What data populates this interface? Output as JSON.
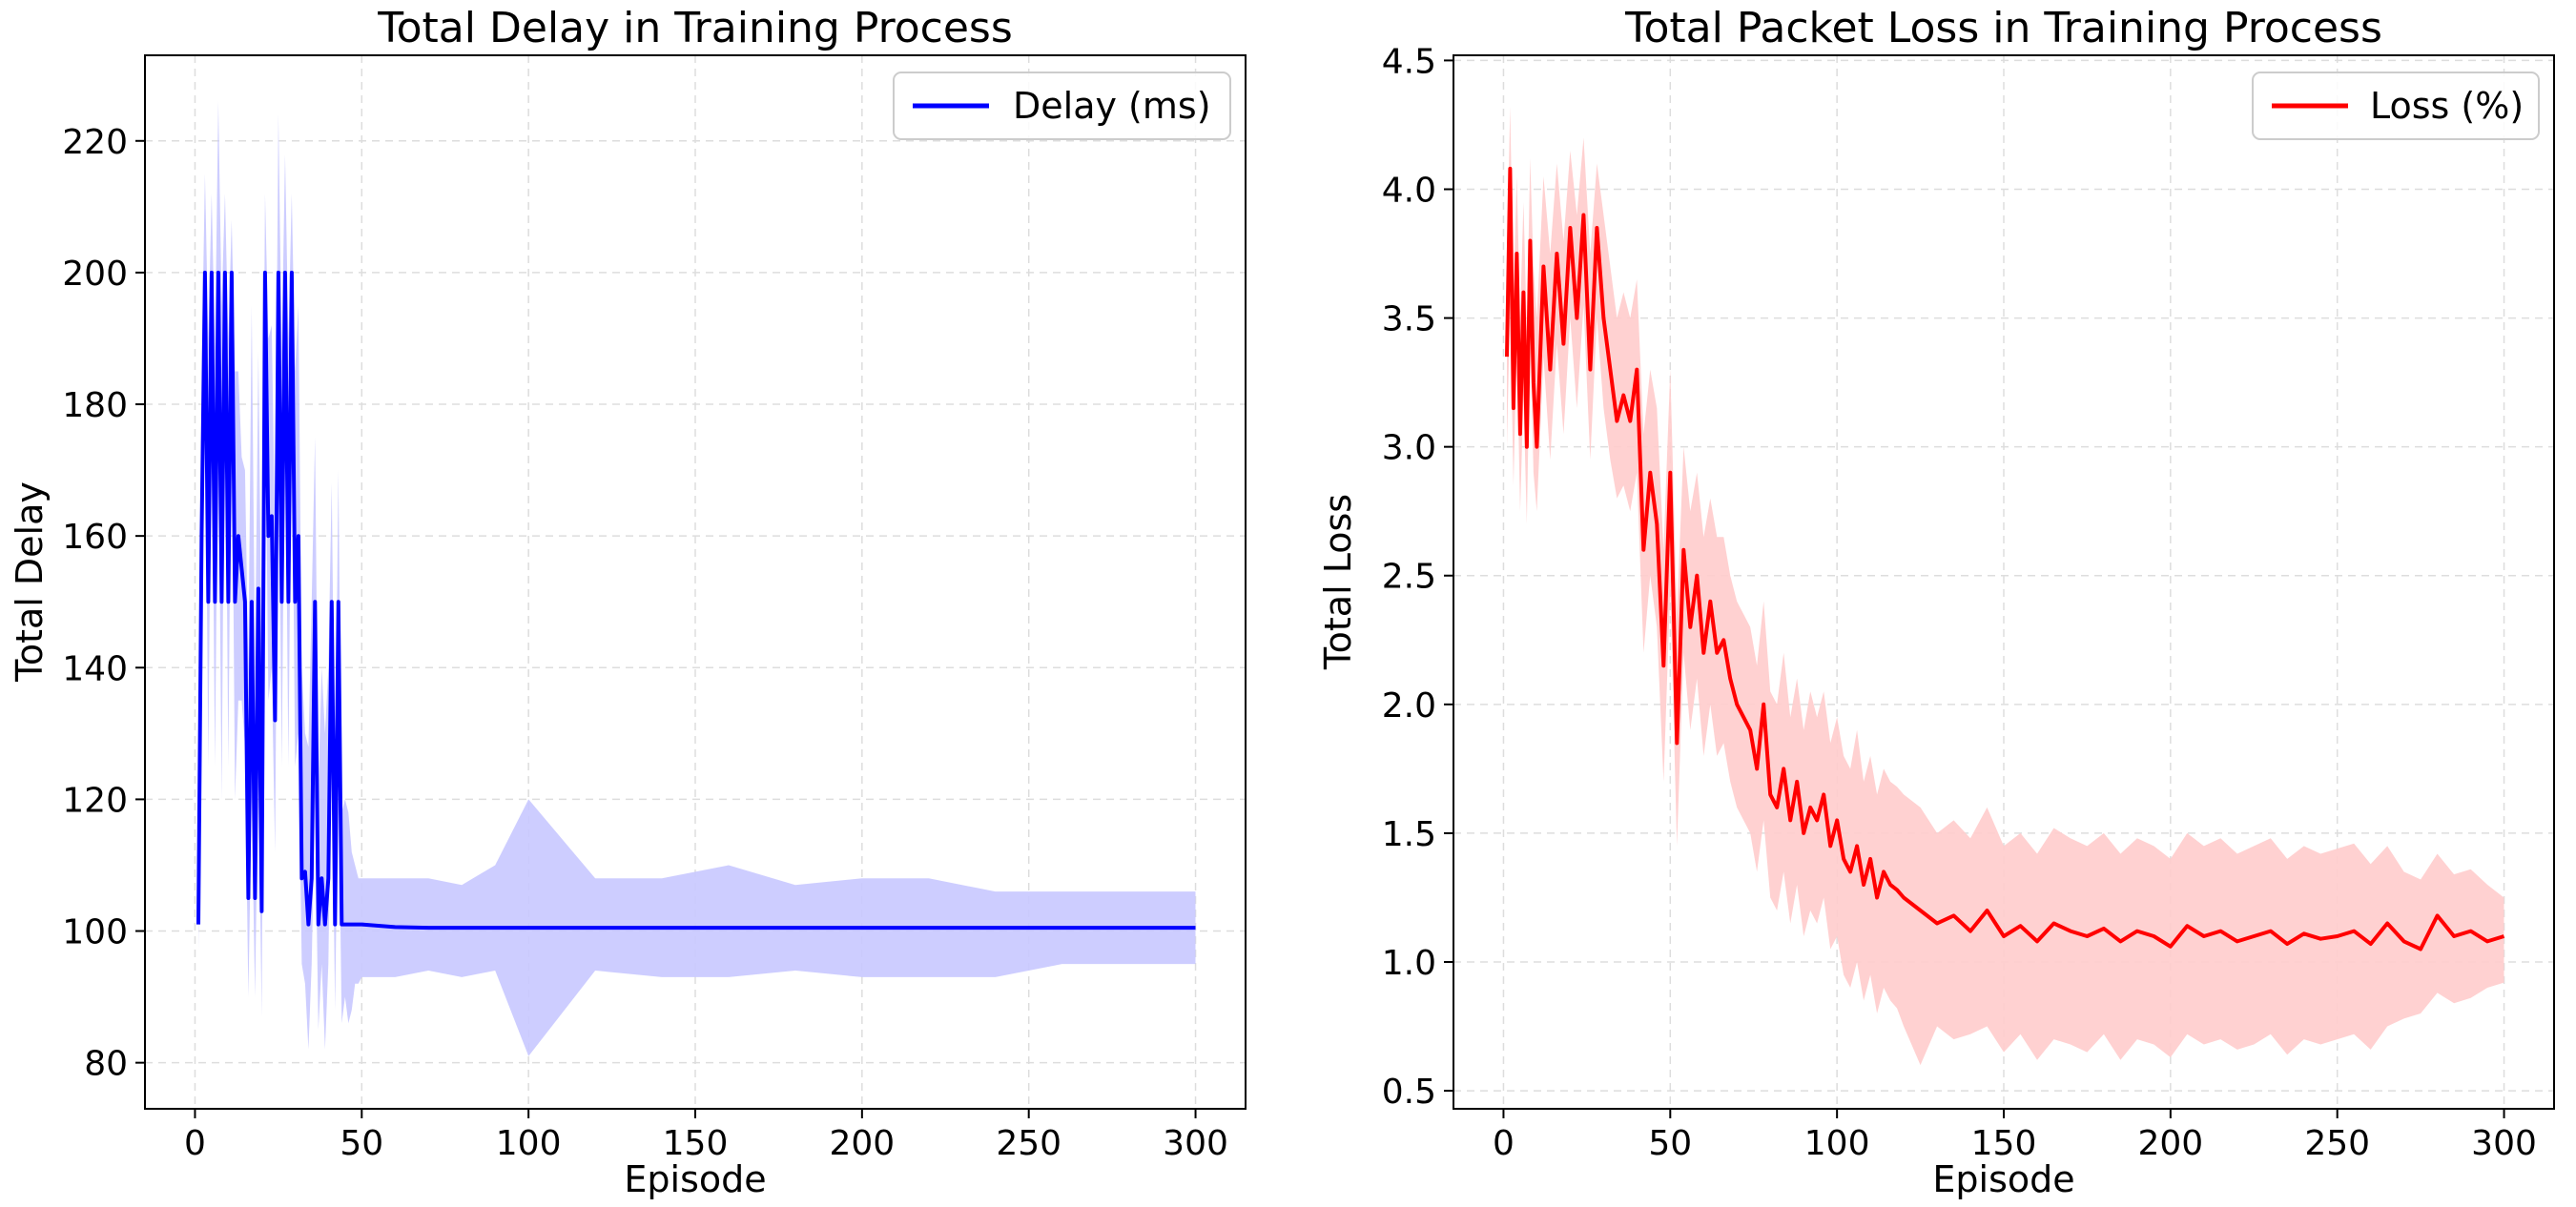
{
  "chart_data": [
    {
      "type": "line",
      "title": "Total Delay in Training Process",
      "xlabel": "Episode",
      "ylabel": "Total Delay",
      "xlim": [
        -15,
        315
      ],
      "ylim": [
        73,
        233
      ],
      "xticks": [
        0,
        50,
        100,
        150,
        200,
        250,
        300
      ],
      "yticks": [
        80,
        100,
        120,
        140,
        160,
        180,
        200,
        220
      ],
      "grid": true,
      "legend": {
        "position": "top-right",
        "entries": [
          "Delay (ms)"
        ]
      },
      "line_color": "#0000ff",
      "band_color": "#c8c8ff",
      "series": [
        {
          "name": "Delay (ms)",
          "x": [
            1,
            2,
            3,
            4,
            5,
            6,
            7,
            8,
            9,
            10,
            11,
            12,
            13,
            14,
            15,
            16,
            17,
            18,
            19,
            20,
            21,
            22,
            23,
            24,
            25,
            26,
            27,
            28,
            29,
            30,
            31,
            32,
            33,
            34,
            35,
            36,
            37,
            38,
            39,
            40,
            41,
            42,
            43,
            44,
            45,
            46,
            47,
            48,
            49,
            50,
            60,
            70,
            80,
            90,
            100,
            120,
            140,
            160,
            180,
            200,
            220,
            240,
            260,
            280,
            300
          ],
          "values": [
            101,
            160,
            200,
            150,
            200,
            150,
            200,
            150,
            200,
            150,
            200,
            150,
            160,
            155,
            150,
            105,
            150,
            105,
            152,
            103,
            200,
            160,
            163,
            132,
            200,
            150,
            200,
            150,
            200,
            150,
            160,
            108,
            109,
            101,
            108,
            150,
            101,
            108,
            101,
            108,
            150,
            101,
            150,
            101,
            101,
            101,
            101,
            101,
            101,
            101,
            100.6,
            100.5,
            100.5,
            100.5,
            100.5,
            100.5,
            100.5,
            100.5,
            100.5,
            100.5,
            100.5,
            100.5,
            100.5,
            100.5,
            100.5
          ],
          "upper": [
            110,
            185,
            215,
            190,
            212,
            188,
            226,
            195,
            212,
            190,
            208,
            185,
            185,
            172,
            170,
            140,
            195,
            140,
            188,
            140,
            212,
            190,
            192,
            160,
            224,
            188,
            218,
            190,
            212,
            185,
            195,
            140,
            130,
            128,
            150,
            175,
            122,
            140,
            130,
            140,
            168,
            120,
            170,
            118,
            120,
            118,
            112,
            110,
            108,
            108,
            108,
            108,
            107,
            110,
            120,
            108,
            108,
            110,
            107,
            108,
            108,
            106,
            106,
            106,
            106
          ],
          "lower": [
            97,
            140,
            190,
            125,
            185,
            125,
            180,
            120,
            190,
            125,
            185,
            120,
            135,
            135,
            128,
            90,
            120,
            90,
            125,
            87,
            185,
            135,
            140,
            112,
            182,
            125,
            182,
            125,
            182,
            125,
            130,
            95,
            92,
            82,
            95,
            120,
            85,
            95,
            82,
            95,
            130,
            88,
            125,
            86,
            90,
            86,
            88,
            92,
            92,
            93,
            93,
            94,
            93,
            94,
            81,
            94,
            93,
            93,
            94,
            93,
            93,
            93,
            95,
            95,
            95
          ]
        }
      ]
    },
    {
      "type": "line",
      "title": "Total Packet Loss in Training Process",
      "xlabel": "Episode",
      "ylabel": "Total Loss",
      "xlim": [
        -15,
        315
      ],
      "ylim": [
        0.43,
        4.52
      ],
      "xticks": [
        0,
        50,
        100,
        150,
        200,
        250,
        300
      ],
      "yticks": [
        0.5,
        1.0,
        1.5,
        2.0,
        2.5,
        3.0,
        3.5,
        4.0,
        4.5
      ],
      "grid": true,
      "legend": {
        "position": "top-right",
        "entries": [
          "Loss (%)"
        ]
      },
      "line_color": "#ff0000",
      "band_color": "#ffcccc",
      "series": [
        {
          "name": "Loss (%)",
          "x": [
            1,
            2,
            3,
            4,
            5,
            6,
            7,
            8,
            9,
            10,
            12,
            14,
            16,
            18,
            20,
            22,
            24,
            26,
            28,
            30,
            32,
            34,
            36,
            38,
            40,
            42,
            44,
            46,
            48,
            50,
            52,
            54,
            56,
            58,
            60,
            62,
            64,
            66,
            68,
            70,
            72,
            74,
            76,
            78,
            80,
            82,
            84,
            86,
            88,
            90,
            92,
            94,
            96,
            98,
            100,
            102,
            104,
            106,
            108,
            110,
            112,
            114,
            116,
            118,
            120,
            125,
            130,
            135,
            140,
            145,
            150,
            155,
            160,
            165,
            170,
            175,
            180,
            185,
            190,
            195,
            200,
            205,
            210,
            215,
            220,
            225,
            230,
            235,
            240,
            245,
            250,
            255,
            260,
            265,
            270,
            275,
            280,
            285,
            290,
            295,
            300
          ],
          "values": [
            3.35,
            4.08,
            3.15,
            3.75,
            3.05,
            3.6,
            3.0,
            3.8,
            3.25,
            3.0,
            3.7,
            3.3,
            3.75,
            3.4,
            3.85,
            3.5,
            3.9,
            3.3,
            3.85,
            3.5,
            3.3,
            3.1,
            3.2,
            3.1,
            3.3,
            2.6,
            2.9,
            2.7,
            2.15,
            2.9,
            1.85,
            2.6,
            2.3,
            2.5,
            2.2,
            2.4,
            2.2,
            2.25,
            2.1,
            2.0,
            1.95,
            1.9,
            1.75,
            2.0,
            1.65,
            1.6,
            1.75,
            1.55,
            1.7,
            1.5,
            1.6,
            1.55,
            1.65,
            1.45,
            1.55,
            1.4,
            1.35,
            1.45,
            1.3,
            1.4,
            1.25,
            1.35,
            1.3,
            1.28,
            1.25,
            1.2,
            1.15,
            1.18,
            1.12,
            1.2,
            1.1,
            1.14,
            1.08,
            1.15,
            1.12,
            1.1,
            1.13,
            1.08,
            1.12,
            1.1,
            1.06,
            1.14,
            1.1,
            1.12,
            1.08,
            1.1,
            1.12,
            1.07,
            1.11,
            1.09,
            1.1,
            1.12,
            1.07,
            1.15,
            1.08,
            1.05,
            1.18,
            1.1,
            1.12,
            1.08,
            1.1
          ],
          "upper": [
            3.7,
            4.32,
            3.6,
            4.05,
            3.5,
            3.95,
            3.45,
            4.12,
            3.7,
            3.5,
            4.05,
            3.75,
            4.1,
            3.8,
            4.15,
            3.9,
            4.2,
            3.75,
            4.1,
            3.9,
            3.7,
            3.5,
            3.6,
            3.5,
            3.65,
            3.05,
            3.3,
            3.15,
            2.6,
            3.3,
            2.35,
            3.0,
            2.75,
            2.9,
            2.65,
            2.8,
            2.65,
            2.65,
            2.5,
            2.4,
            2.35,
            2.3,
            2.15,
            2.4,
            2.05,
            2.0,
            2.2,
            1.95,
            2.1,
            1.9,
            2.05,
            1.95,
            2.05,
            1.85,
            1.95,
            1.8,
            1.75,
            1.9,
            1.7,
            1.8,
            1.65,
            1.75,
            1.7,
            1.68,
            1.65,
            1.6,
            1.5,
            1.55,
            1.48,
            1.6,
            1.45,
            1.5,
            1.42,
            1.52,
            1.48,
            1.45,
            1.5,
            1.42,
            1.48,
            1.45,
            1.4,
            1.5,
            1.45,
            1.48,
            1.42,
            1.45,
            1.48,
            1.4,
            1.45,
            1.42,
            1.44,
            1.46,
            1.38,
            1.45,
            1.35,
            1.32,
            1.42,
            1.34,
            1.36,
            1.3,
            1.25
          ],
          "upper_note": "",
          "lower": [
            3.0,
            3.55,
            2.85,
            3.4,
            2.75,
            3.2,
            2.7,
            3.45,
            2.9,
            2.75,
            3.35,
            2.95,
            3.4,
            3.05,
            3.5,
            3.15,
            3.55,
            2.95,
            3.5,
            3.15,
            2.95,
            2.8,
            2.85,
            2.75,
            2.9,
            2.2,
            2.5,
            2.3,
            1.7,
            2.45,
            1.45,
            2.2,
            1.9,
            2.1,
            1.8,
            2.0,
            1.8,
            1.85,
            1.7,
            1.6,
            1.55,
            1.5,
            1.35,
            1.55,
            1.25,
            1.2,
            1.35,
            1.15,
            1.3,
            1.1,
            1.2,
            1.15,
            1.25,
            1.05,
            1.1,
            0.95,
            0.9,
            1.0,
            0.85,
            0.95,
            0.8,
            0.9,
            0.85,
            0.82,
            0.75,
            0.6,
            0.75,
            0.7,
            0.72,
            0.75,
            0.65,
            0.72,
            0.62,
            0.7,
            0.68,
            0.65,
            0.72,
            0.62,
            0.7,
            0.68,
            0.63,
            0.72,
            0.68,
            0.7,
            0.66,
            0.68,
            0.72,
            0.64,
            0.7,
            0.68,
            0.7,
            0.72,
            0.66,
            0.75,
            0.78,
            0.8,
            0.88,
            0.84,
            0.86,
            0.9,
            0.92
          ]
        }
      ]
    }
  ]
}
